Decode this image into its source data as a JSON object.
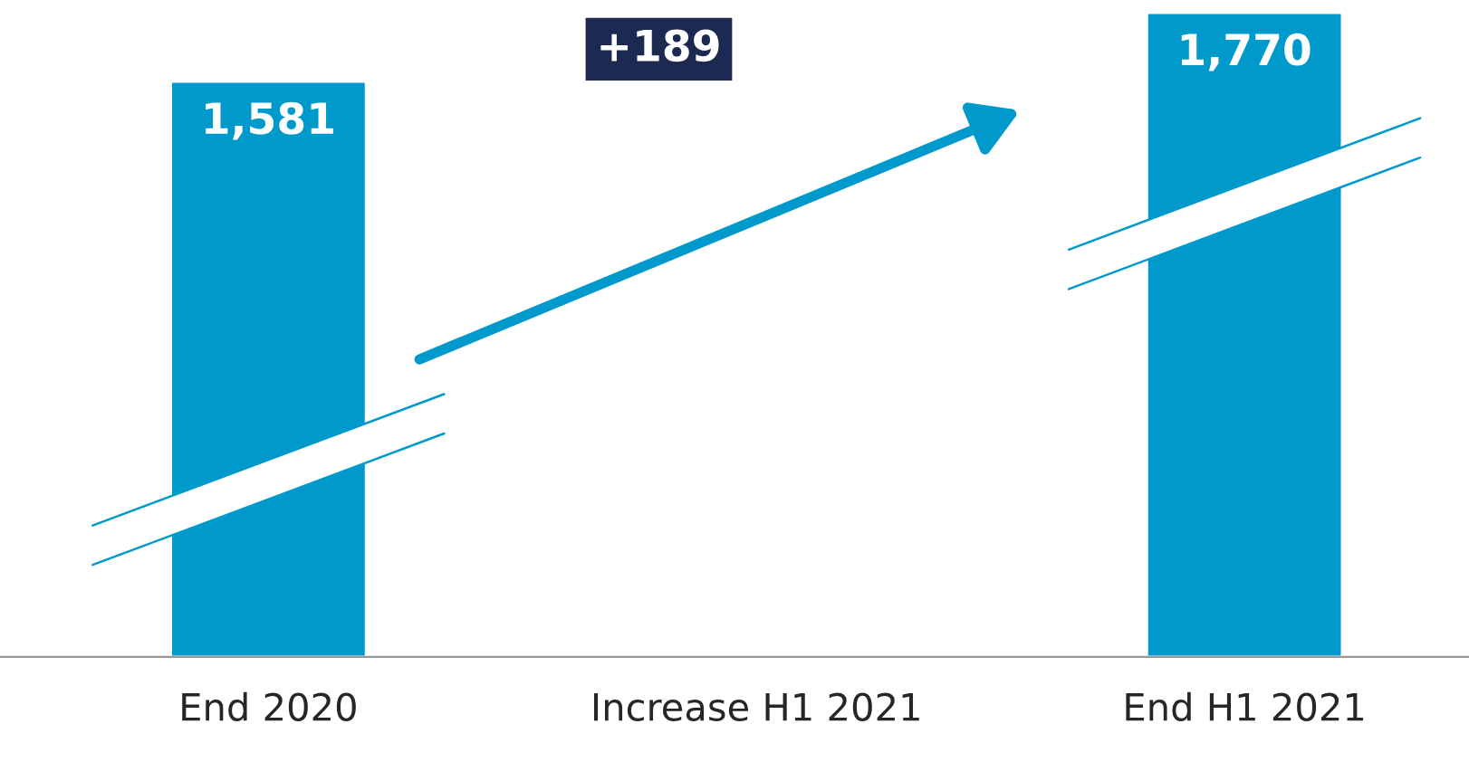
{
  "chart_data": {
    "type": "bar",
    "categories": [
      "End 2020",
      "Increase H1 2021",
      "End H1 2021"
    ],
    "values": [
      1581,
      null,
      1770
    ],
    "value_labels": [
      "1,581",
      null,
      "1,770"
    ],
    "color": "#0099cc",
    "annotations": [
      "+189"
    ],
    "grid": false,
    "legend": false
  }
}
